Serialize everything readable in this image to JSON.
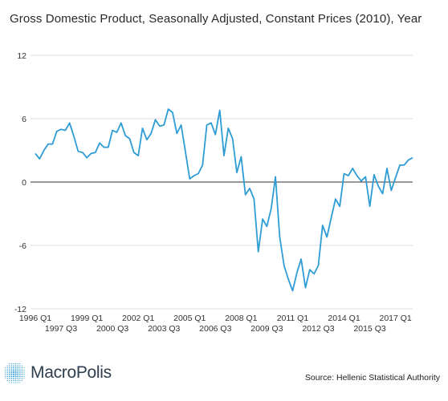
{
  "title": "Gross Domestic Product, Seasonally Adjusted, Constant Prices (2010), Year",
  "brand": {
    "name": "MacroPolis",
    "icon": "dotted-globe-icon"
  },
  "source": "Source: Hellenic Statistical Authority",
  "chart_data": {
    "type": "line",
    "title": "Gross Domestic Product, Seasonally Adjusted, Constant Prices (2010), Year",
    "xlabel": "",
    "ylabel": "",
    "ylim": [
      -12,
      12
    ],
    "yticks": [
      "12",
      "6",
      "0",
      "-6",
      "-12"
    ],
    "grid": true,
    "color": "#2e9cd5",
    "xtick_labels_row1": [
      "1996 Q1",
      "1999 Q1",
      "2002 Q1",
      "2005 Q1",
      "2008 Q1",
      "2011 Q1",
      "2014 Q1",
      "2017 Q1"
    ],
    "xtick_labels_row2": [
      "1997 Q3",
      "2000 Q3",
      "2003 Q3",
      "2006 Q3",
      "2009 Q3",
      "2012 Q3",
      "2015 Q3"
    ],
    "x_start": "1996 Q1",
    "series": [
      {
        "values": [
          2.7,
          2.2,
          3.0,
          3.6,
          3.6,
          4.8,
          5.0,
          4.9,
          5.6,
          4.3,
          2.9,
          2.8,
          2.3,
          2.7,
          2.8,
          3.7,
          3.3,
          3.3,
          4.9,
          4.7,
          5.6,
          4.4,
          4.1,
          2.8,
          2.5,
          5.1,
          4.0,
          4.6,
          5.9,
          5.3,
          5.4,
          6.9,
          6.6,
          4.6,
          5.4,
          2.9,
          0.3,
          0.6,
          0.8,
          1.6,
          5.4,
          5.6,
          4.5,
          6.8,
          2.5,
          5.1,
          4.1,
          0.9,
          2.4,
          -1.2,
          -0.6,
          -1.6,
          -6.6,
          -3.5,
          -4.2,
          -2.5,
          0.5,
          -5.2,
          -7.9,
          -9.2,
          -10.3,
          -8.6,
          -7.3,
          -10.0,
          -8.3,
          -8.7,
          -7.9,
          -4.1,
          -5.2,
          -3.4,
          -1.6,
          -2.3,
          0.8,
          0.6,
          1.3,
          0.6,
          0.1,
          0.5,
          -2.3,
          0.7,
          -0.4,
          -1.1,
          1.3,
          -0.8,
          0.4,
          1.6,
          1.6,
          2.1,
          2.3
        ]
      }
    ]
  }
}
